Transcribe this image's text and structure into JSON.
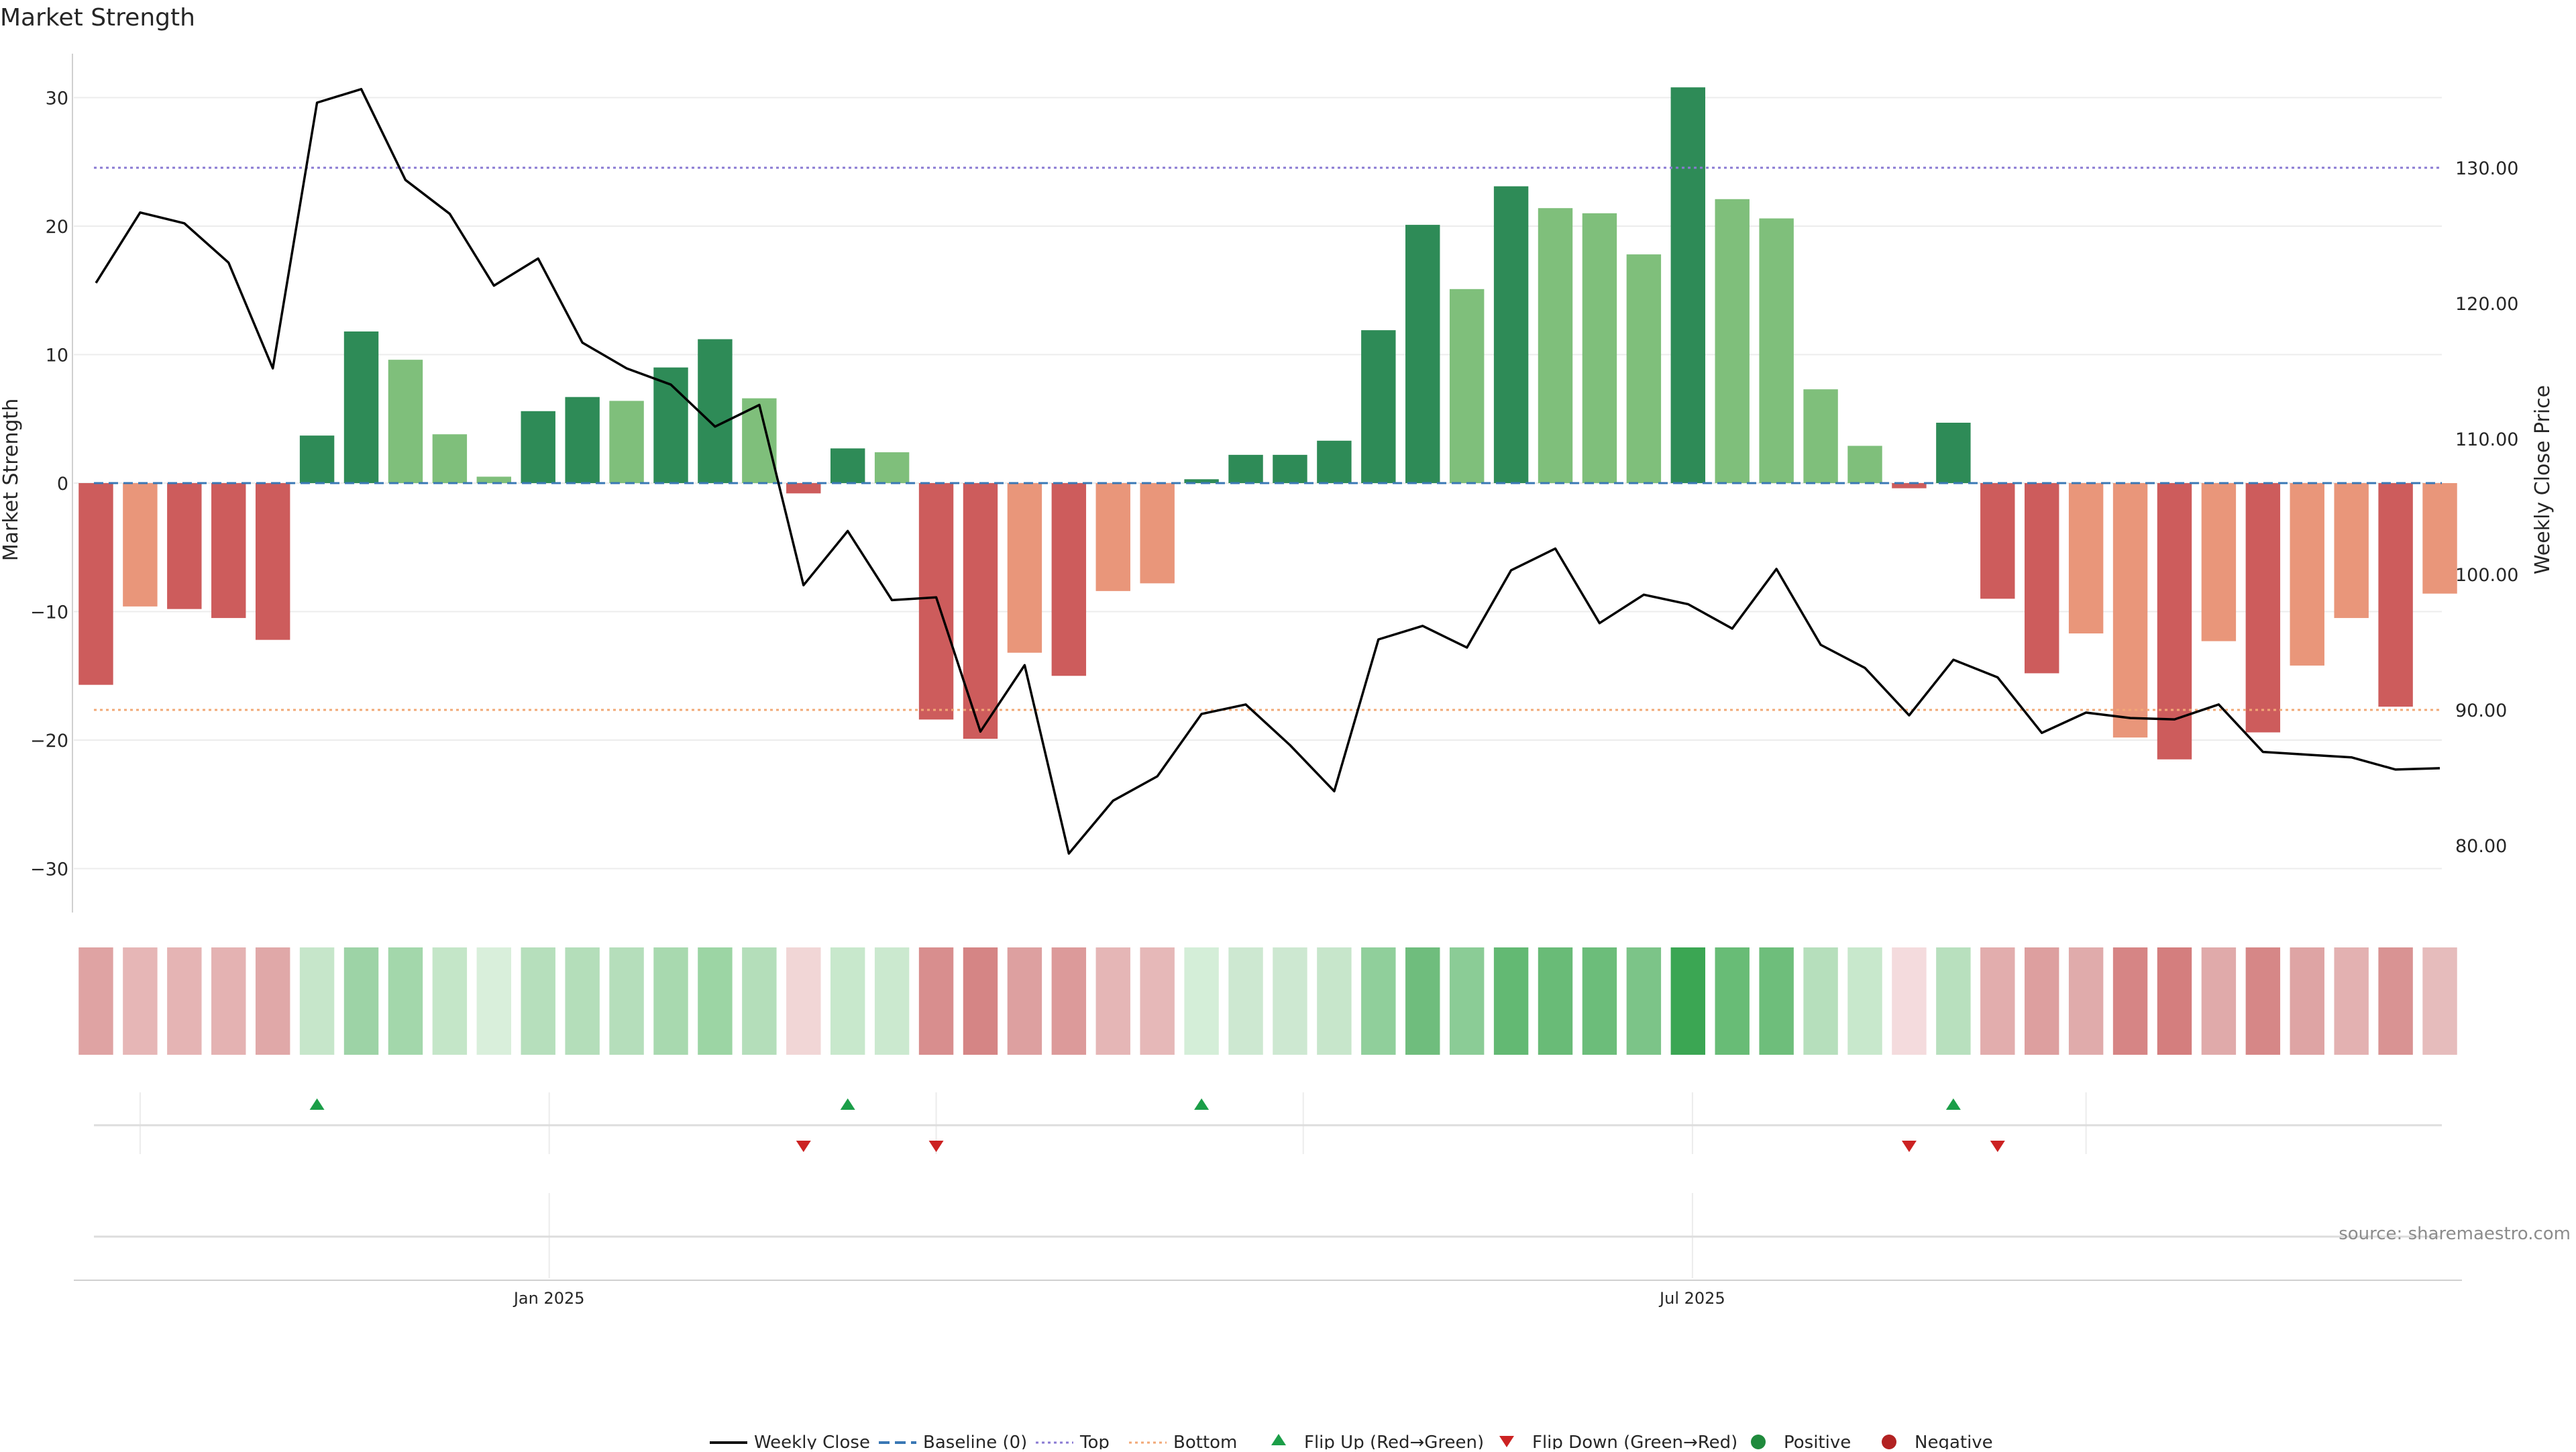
{
  "chart_data": {
    "type": "bar",
    "title": "Market Strength",
    "ylabel": "Market Strength",
    "y2label": "Weekly Close Price",
    "ylim": [
      -34,
      34
    ],
    "y2lim": [
      74.5,
      138.5
    ],
    "yticks": [
      30,
      20,
      10,
      0,
      -10,
      -20,
      -30
    ],
    "yticklabels": [
      "30",
      "20",
      "10",
      "0",
      "−10",
      "−20",
      "−30"
    ],
    "y2ticks": [
      130,
      120,
      110,
      100,
      90,
      80
    ],
    "y2ticklabels": [
      "130.00",
      "120.00",
      "110.00",
      "100.00",
      "90.00",
      "80.00"
    ],
    "x_tick_labels": [
      {
        "week_index": 10.75,
        "label": "Jan 2025"
      },
      {
        "week_index": 36.6,
        "label": "Jul 2025"
      }
    ],
    "minor_date_lines_week_index": [
      1.5,
      10.75,
      19.5,
      27.8,
      36.6,
      45.5
    ],
    "grid": true,
    "source_text": "source: sharemaestro.com",
    "week_count": 54,
    "market_strength": [
      -15.7,
      -9.6,
      -9.8,
      -10.5,
      -12.2,
      3.7,
      11.8,
      9.6,
      3.8,
      0.5,
      5.6,
      6.7,
      6.4,
      9.0,
      11.2,
      6.6,
      -0.8,
      2.7,
      2.4,
      -18.4,
      -19.9,
      -13.2,
      -15.0,
      -8.4,
      -7.8,
      0.3,
      2.2,
      2.2,
      3.3,
      11.9,
      20.1,
      15.1,
      23.1,
      21.4,
      21.0,
      17.8,
      30.8,
      22.1,
      20.6,
      7.3,
      2.9,
      -0.4,
      4.7,
      -9.0,
      -14.8,
      -11.7,
      -19.8,
      -21.5,
      -12.3,
      -19.4,
      -14.2,
      -10.5,
      -17.4,
      -8.6
    ],
    "bar_color_class": [
      "neg_strong",
      "neg_light",
      "neg_strong",
      "neg_strong",
      "neg_strong",
      "pos_strong",
      "pos_strong",
      "pos_light",
      "pos_light",
      "pos_light",
      "pos_strong",
      "pos_strong",
      "pos_light",
      "pos_strong",
      "pos_strong",
      "pos_light",
      "neg_strong",
      "pos_strong",
      "pos_light",
      "neg_strong",
      "neg_strong",
      "neg_light",
      "neg_strong",
      "neg_light",
      "neg_light",
      "pos_strong",
      "pos_strong",
      "pos_strong",
      "pos_strong",
      "pos_strong",
      "pos_strong",
      "pos_light",
      "pos_strong",
      "pos_light",
      "pos_light",
      "pos_light",
      "pos_strong",
      "pos_light",
      "pos_light",
      "pos_light",
      "pos_light",
      "neg_strong",
      "pos_strong",
      "neg_strong",
      "neg_strong",
      "neg_light",
      "neg_light",
      "neg_strong",
      "neg_light",
      "neg_strong",
      "neg_light",
      "neg_light",
      "neg_strong",
      "neg_light"
    ],
    "weekly_close": [
      121.5,
      126.7,
      125.9,
      123.0,
      115.2,
      134.8,
      135.8,
      129.1,
      126.6,
      121.3,
      123.3,
      117.1,
      115.2,
      114.0,
      110.9,
      112.5,
      99.2,
      103.2,
      98.1,
      98.3,
      88.4,
      93.3,
      79.4,
      83.3,
      85.1,
      89.7,
      90.4,
      87.4,
      84.0,
      95.2,
      96.2,
      94.6,
      100.3,
      101.9,
      96.4,
      98.5,
      97.8,
      96.0,
      100.4,
      94.8,
      93.1,
      89.6,
      93.7,
      92.4,
      88.3,
      89.8,
      89.4,
      89.3,
      90.4,
      86.9,
      86.7,
      86.5,
      85.6,
      85.7
    ],
    "top_line": 130.0,
    "bottom_line": 90.0,
    "baseline": 0,
    "heat_strip_colors": [
      "#dfa3a3",
      "#e6b6b6",
      "#e5b4b4",
      "#e4b2b2",
      "#e0a8a8",
      "#c6e6ca",
      "#9dd3a6",
      "#a3d7ab",
      "#c4e6c8",
      "#d9efdb",
      "#b6dfbc",
      "#b4deba",
      "#b5debb",
      "#a8d9af",
      "#9cd5a4",
      "#b4deba",
      "#f1d6d6",
      "#c8e8cc",
      "#cbe9cf",
      "#d88e8e",
      "#d58585",
      "#dda0a0",
      "#dc9a9a",
      "#e5b6b6",
      "#e6b8b8",
      "#d4eed8",
      "#cde8d1",
      "#cde8d1",
      "#c7e6cb",
      "#90cf9b",
      "#6fbd7d",
      "#8bcc96",
      "#63b973",
      "#69bb77",
      "#6cbd7a",
      "#7cc488",
      "#3ba653",
      "#68bc76",
      "#6ebe7b",
      "#b6dfbc",
      "#c8e8cc",
      "#f4dbdd",
      "#b8e0be",
      "#e2adad",
      "#dd9f9f",
      "#e0abab",
      "#d68585",
      "#d47e7e",
      "#e0aaaa",
      "#d68787",
      "#dea4a4",
      "#e3b1b1",
      "#d99393",
      "#e6bcbc"
    ],
    "flip_up_week_index": [
      5,
      17,
      25,
      42
    ],
    "flip_down_week_index": [
      16,
      19,
      41,
      43
    ],
    "legend": [
      {
        "label": "Weekly Close",
        "symbol": "line",
        "color": "#111111"
      },
      {
        "label": "Baseline (0)",
        "symbol": "dashed",
        "color": "#3a78b5"
      },
      {
        "label": "Top",
        "symbol": "dotted",
        "color": "#8a7ad3"
      },
      {
        "label": "Bottom",
        "symbol": "dotted",
        "color": "#f2a876"
      },
      {
        "label": "Flip Up (Red→Green)",
        "symbol": "triangle-up",
        "color": "#1b9e48"
      },
      {
        "label": "Flip Down (Green→Red)",
        "symbol": "triangle-down",
        "color": "#cc2222"
      },
      {
        "label": "Positive",
        "symbol": "circle",
        "color": "#1f8a3c"
      },
      {
        "label": "Negative",
        "symbol": "circle",
        "color": "#b22222"
      }
    ],
    "legend_position": "bottom-center"
  },
  "colors": {
    "pos_strong": "#2e8b57",
    "pos_light": "#7fbf7b",
    "neg_strong": "#cd5c5c",
    "neg_light": "#e9967a",
    "price_line": "#000000",
    "baseline": "#3a78b5",
    "top_line": "#8a7ad3",
    "bottom_line": "#f2a876",
    "flip_up": "#1b9e48",
    "flip_down": "#cc2222",
    "grid": "#ececec",
    "axis": "#d0d0d0",
    "text": "#262626",
    "source_text": "#8c8c8c"
  }
}
